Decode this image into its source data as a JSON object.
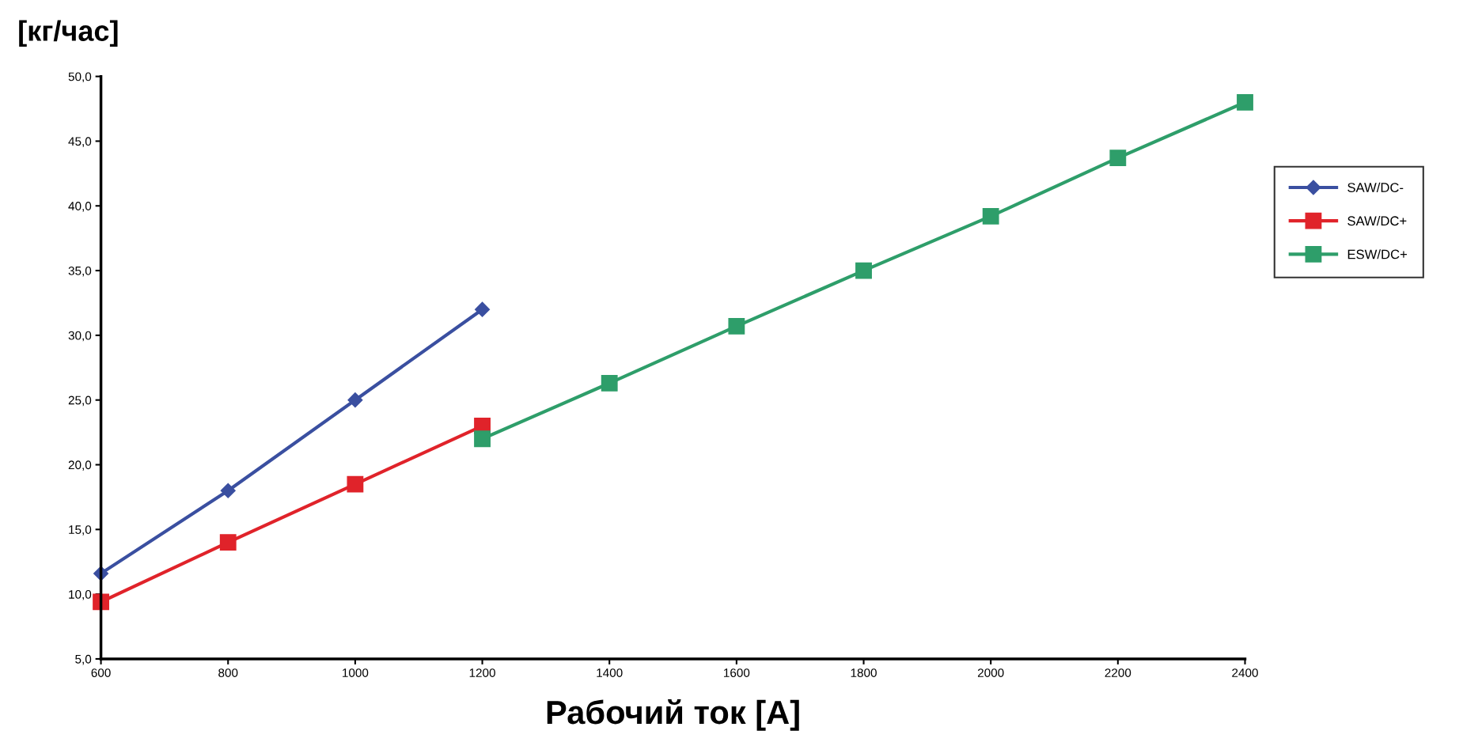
{
  "chart_data": {
    "type": "line",
    "xlabel": "Рабочий ток [A]",
    "ylabel": "[кг/час]",
    "xlim": [
      600,
      2400
    ],
    "xticks": [
      600,
      800,
      1000,
      1200,
      1400,
      1600,
      1800,
      2000,
      2200,
      2400
    ],
    "ylim": [
      5,
      50
    ],
    "yticks": [
      {
        "value": 5,
        "label": "5,0"
      },
      {
        "value": 10,
        "label": "10,0"
      },
      {
        "value": 15,
        "label": "15,0"
      },
      {
        "value": 20,
        "label": "20,0"
      },
      {
        "value": 25,
        "label": "25,0"
      },
      {
        "value": 30,
        "label": "30,0"
      },
      {
        "value": 35,
        "label": "35,0"
      },
      {
        "value": 40,
        "label": "40,0"
      },
      {
        "value": 45,
        "label": "45,0"
      },
      {
        "value": 50,
        "label": "50,0"
      }
    ],
    "grid": false,
    "legend": "right",
    "line_style": "solid",
    "series": [
      {
        "name": "SAW/DC-",
        "color": "#3a4fa0",
        "marker": "diamond",
        "x": [
          600,
          800,
          1000,
          1200
        ],
        "values": [
          11.6,
          18.0,
          25.0,
          32.0
        ]
      },
      {
        "name": "SAW/DC+",
        "color": "#e0232a",
        "marker": "square",
        "x": [
          600,
          800,
          1000,
          1200
        ],
        "values": [
          9.4,
          14.0,
          18.5,
          23.0
        ]
      },
      {
        "name": "ESW/DC+",
        "color": "#2e9e6a",
        "marker": "square",
        "x": [
          1200,
          1400,
          1600,
          1800,
          2000,
          2200,
          2400
        ],
        "values": [
          22.0,
          26.3,
          30.7,
          35.0,
          39.2,
          43.7,
          48.0
        ]
      }
    ]
  }
}
